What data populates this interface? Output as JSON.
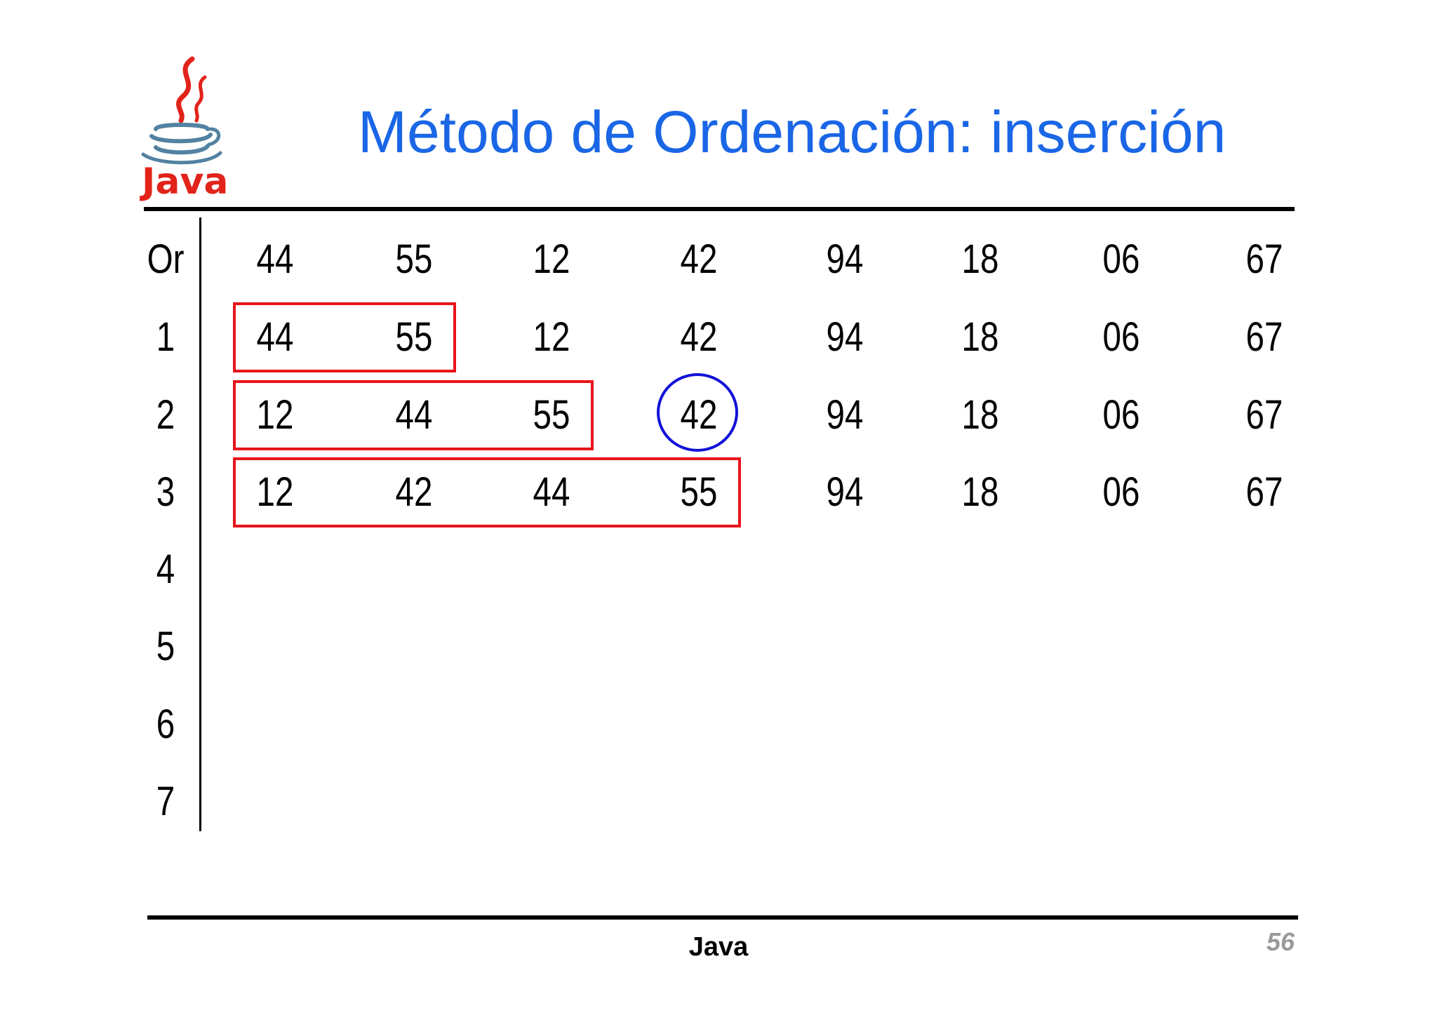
{
  "slide": {
    "title": "Método de Ordenación: inserción",
    "logo_text": "Java",
    "footer_label": "Java",
    "page_number": "56"
  },
  "table": {
    "row_labels": [
      "Or",
      "1",
      "2",
      "3",
      "4",
      "5",
      "6",
      "7"
    ],
    "rows": [
      [
        "44",
        "55",
        "12",
        "42",
        "94",
        "18",
        "06",
        "67"
      ],
      [
        "44",
        "55",
        "12",
        "42",
        "94",
        "18",
        "06",
        "67"
      ],
      [
        "12",
        "44",
        "55",
        "42",
        "94",
        "18",
        "06",
        "67"
      ],
      [
        "12",
        "42",
        "44",
        "55",
        "94",
        "18",
        "06",
        "67"
      ]
    ],
    "sorted_boxes": [
      {
        "row": 1,
        "sorted_count": 2
      },
      {
        "row": 2,
        "sorted_count": 3
      },
      {
        "row": 3,
        "sorted_count": 4
      }
    ],
    "highlight": {
      "row": 2,
      "column": 3
    }
  },
  "colors": {
    "title": "#1a66e6",
    "sorted_box": "#e8141b",
    "highlight_circle": "#1212d8",
    "page_number": "#9a9a9a",
    "logo_red": "#e2231a",
    "logo_blue": "#5382a1"
  }
}
